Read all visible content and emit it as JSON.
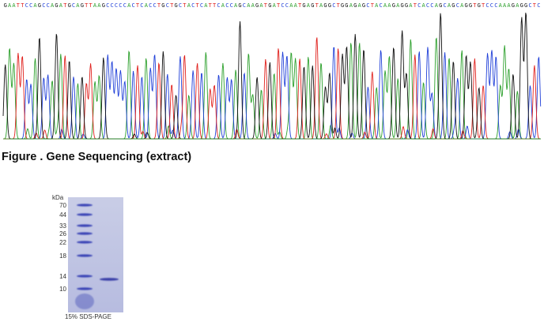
{
  "sequence": {
    "bases": "GAATTCCAGCCAGATGCAGTTAAGCCCCCACTCACCTGCTGCTACTCATTCACCAGCAAGATGATCCAATGAGTAGGCTGGAGAGCTACAAGAGGATCACCAGCAGCAGGTGTCCCAAAGAGGCTC",
    "colors": {
      "A": "#2ca02c",
      "C": "#1f3fd8",
      "G": "#111111",
      "T": "#e0201c"
    }
  },
  "caption": "Figure . Gene Sequencing (extract)",
  "gel": {
    "unit_label": "kDa",
    "marker_labels": [
      "70",
      "44",
      "33",
      "26",
      "22",
      "18",
      "14",
      "10"
    ],
    "footer": "15% SDS-PAGE"
  }
}
